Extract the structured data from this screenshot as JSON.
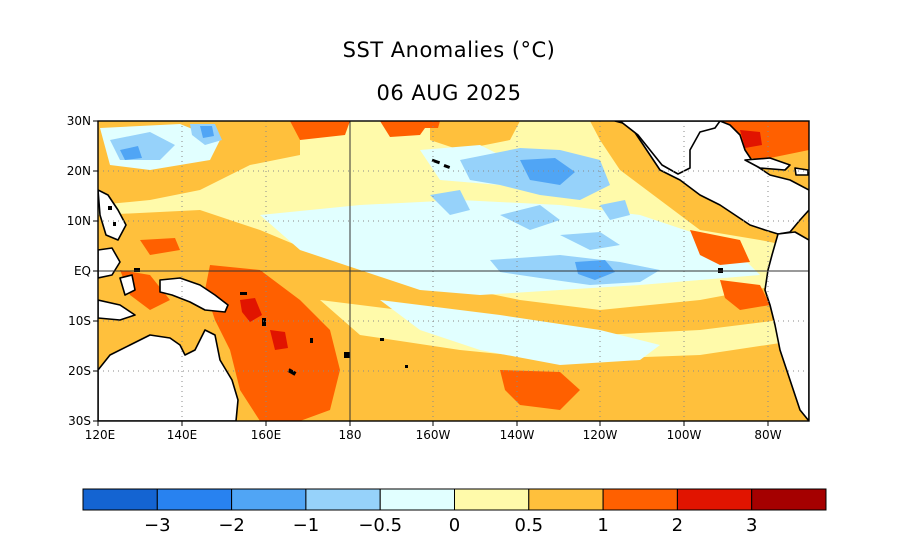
{
  "title": "SST Anomalies (°C)",
  "date": "06 AUG 2025",
  "map": {
    "projection": "equirectangular",
    "lon_range": [
      120,
      290
    ],
    "lat_range": [
      -30,
      30
    ],
    "gridlines": "dotted",
    "reference_lines": [
      "180",
      "EQ"
    ],
    "lat_labels": [
      "30N",
      "20N",
      "10N",
      "EQ",
      "10S",
      "20S",
      "30S"
    ],
    "lon_labels": [
      "120E",
      "140E",
      "160E",
      "180",
      "160W",
      "140W",
      "120W",
      "100W",
      "80W"
    ],
    "land_color": "#ffffff",
    "coastline_color": "#000000"
  },
  "colorbar": {
    "colors": [
      "#1464d2",
      "#2882f0",
      "#50a5f5",
      "#96d2fa",
      "#e1ffff",
      "#fffaaa",
      "#ffc03c",
      "#ff6000",
      "#e11400",
      "#a50000"
    ],
    "tick_labels": [
      "−3",
      "−2",
      "−1",
      "−0.5",
      "0",
      "0.5",
      "1",
      "2",
      "3"
    ]
  }
}
